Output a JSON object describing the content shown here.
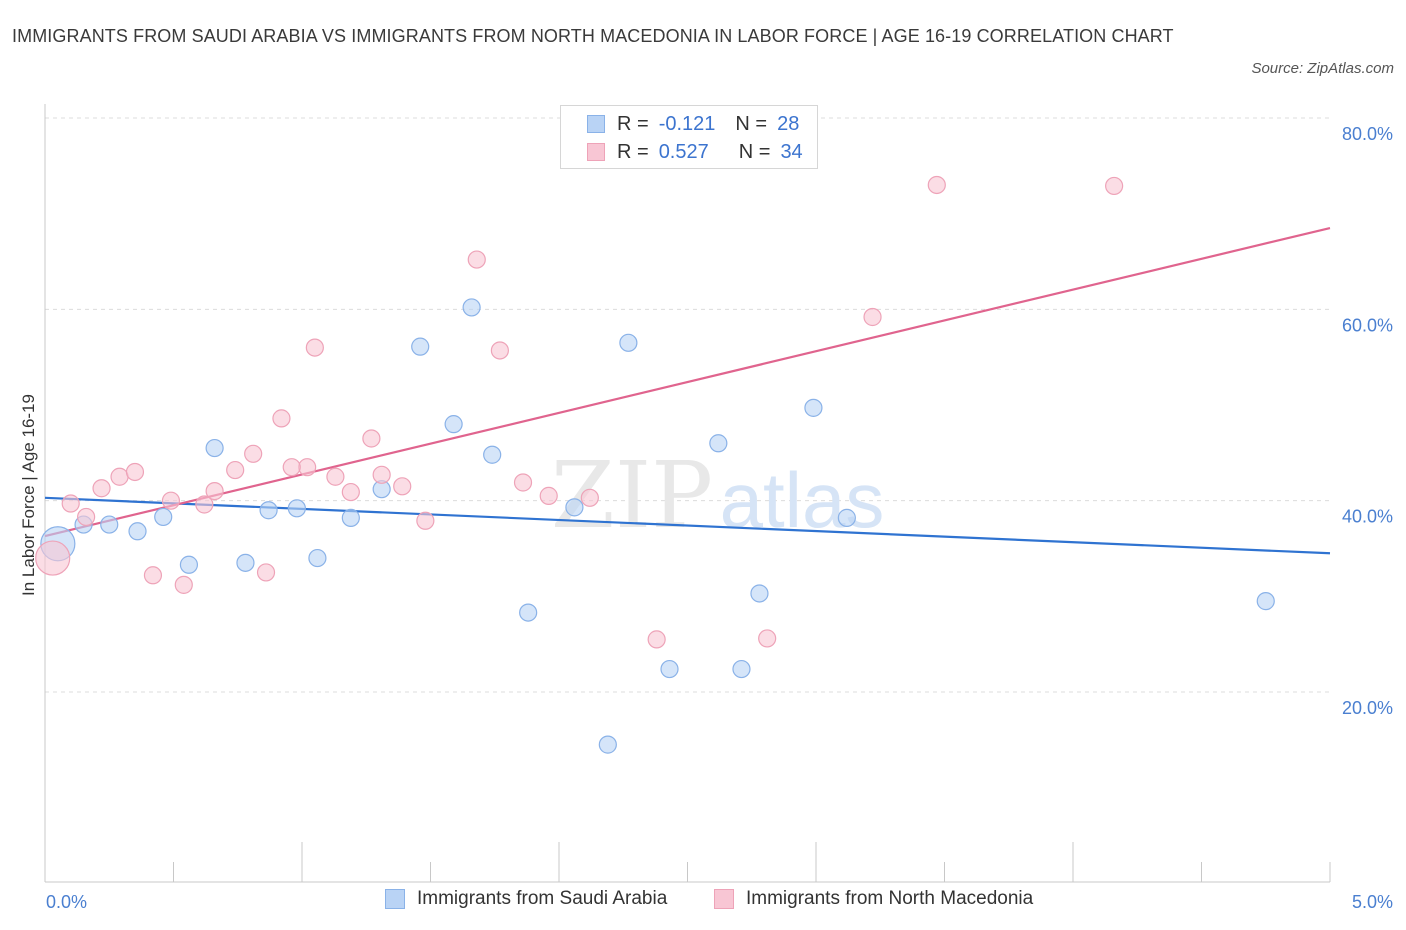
{
  "header": {
    "title": "IMMIGRANTS FROM SAUDI ARABIA VS IMMIGRANTS FROM NORTH MACEDONIA IN LABOR FORCE | AGE 16-19 CORRELATION CHART",
    "source": "Source: ZipAtlas.com"
  },
  "legend": {
    "rows": [
      {
        "r_label": "R =",
        "r_value": "-0.121",
        "n_label": "N =",
        "n_value": "28"
      },
      {
        "r_label": "R =",
        "r_value": "0.527",
        "n_label": "N =",
        "n_value": "34"
      }
    ]
  },
  "bottom_legend": {
    "items": [
      "Immigrants from Saudi Arabia",
      "Immigrants from North Macedonia"
    ]
  },
  "watermark": {
    "zip": "ZIP",
    "atlas": "atlas"
  },
  "colors": {
    "blue_fill": "#b9d3f5",
    "blue_stroke": "#8ab2e8",
    "blue_line": "#2f73d1",
    "pink_fill": "#f8c6d4",
    "pink_stroke": "#eea3b8",
    "pink_line": "#e0648e",
    "tick_text": "#4a7fd0",
    "grid": "#dcdcdc"
  },
  "chart_data": {
    "type": "scatter",
    "title": "IMMIGRANTS FROM SAUDI ARABIA VS IMMIGRANTS FROM NORTH MACEDONIA IN LABOR FORCE | AGE 16-19 CORRELATION CHART",
    "xlabel": "",
    "ylabel": "In Labor Force | Age 16-19",
    "xlim": [
      0,
      5
    ],
    "ylim": [
      0,
      80
    ],
    "x_tick_labels": [
      "0.0%",
      "5.0%"
    ],
    "y_ticks": [
      20,
      40,
      60,
      80
    ],
    "y_tick_labels": [
      "20.0%",
      "40.0%",
      "60.0%",
      "80.0%"
    ],
    "grid": true,
    "legend_position": "top-center",
    "series": [
      {
        "name": "Immigrants from Saudi Arabia",
        "color": "#8ab2e8",
        "points": [
          {
            "x": 0.05,
            "y": 35.5,
            "big": true
          },
          {
            "x": 0.15,
            "y": 37.5
          },
          {
            "x": 0.25,
            "y": 37.5
          },
          {
            "x": 0.36,
            "y": 36.8
          },
          {
            "x": 0.46,
            "y": 38.3
          },
          {
            "x": 0.56,
            "y": 33.3
          },
          {
            "x": 0.66,
            "y": 45.5
          },
          {
            "x": 0.78,
            "y": 33.5
          },
          {
            "x": 0.87,
            "y": 39.0
          },
          {
            "x": 0.98,
            "y": 39.2
          },
          {
            "x": 1.06,
            "y": 34.0
          },
          {
            "x": 1.19,
            "y": 38.2
          },
          {
            "x": 1.31,
            "y": 41.2
          },
          {
            "x": 1.46,
            "y": 56.1
          },
          {
            "x": 1.59,
            "y": 48.0
          },
          {
            "x": 1.66,
            "y": 60.2
          },
          {
            "x": 1.74,
            "y": 44.8
          },
          {
            "x": 1.88,
            "y": 28.3
          },
          {
            "x": 2.06,
            "y": 39.3
          },
          {
            "x": 2.19,
            "y": 14.5
          },
          {
            "x": 2.27,
            "y": 56.5
          },
          {
            "x": 2.43,
            "y": 22.4
          },
          {
            "x": 2.62,
            "y": 46.0
          },
          {
            "x": 2.71,
            "y": 22.4
          },
          {
            "x": 2.78,
            "y": 30.3
          },
          {
            "x": 2.99,
            "y": 49.7
          },
          {
            "x": 3.12,
            "y": 38.2
          },
          {
            "x": 4.75,
            "y": 29.5
          }
        ],
        "trend": {
          "x": [
            0.0,
            5.0
          ],
          "y": [
            40.3,
            34.5
          ]
        }
      },
      {
        "name": "Immigrants from North Macedonia",
        "color": "#eea3b8",
        "points": [
          {
            "x": 0.03,
            "y": 34.0,
            "big": true
          },
          {
            "x": 0.1,
            "y": 39.7
          },
          {
            "x": 0.16,
            "y": 38.3
          },
          {
            "x": 0.22,
            "y": 41.3
          },
          {
            "x": 0.29,
            "y": 42.5
          },
          {
            "x": 0.35,
            "y": 43.0
          },
          {
            "x": 0.42,
            "y": 32.2
          },
          {
            "x": 0.49,
            "y": 40.0
          },
          {
            "x": 0.54,
            "y": 31.2
          },
          {
            "x": 0.62,
            "y": 39.6
          },
          {
            "x": 0.66,
            "y": 41.0
          },
          {
            "x": 0.74,
            "y": 43.2
          },
          {
            "x": 0.81,
            "y": 44.9
          },
          {
            "x": 0.86,
            "y": 32.5
          },
          {
            "x": 0.92,
            "y": 48.6
          },
          {
            "x": 1.02,
            "y": 43.5
          },
          {
            "x": 1.05,
            "y": 56.0
          },
          {
            "x": 1.13,
            "y": 42.5
          },
          {
            "x": 1.19,
            "y": 40.9
          },
          {
            "x": 1.27,
            "y": 46.5
          },
          {
            "x": 1.31,
            "y": 42.7
          },
          {
            "x": 1.39,
            "y": 41.5
          },
          {
            "x": 1.48,
            "y": 37.9
          },
          {
            "x": 1.68,
            "y": 65.2
          },
          {
            "x": 1.77,
            "y": 55.7
          },
          {
            "x": 1.86,
            "y": 41.9
          },
          {
            "x": 1.96,
            "y": 40.5
          },
          {
            "x": 2.12,
            "y": 40.3
          },
          {
            "x": 2.38,
            "y": 25.5
          },
          {
            "x": 2.81,
            "y": 25.6
          },
          {
            "x": 3.22,
            "y": 59.2
          },
          {
            "x": 3.47,
            "y": 73.0
          },
          {
            "x": 4.16,
            "y": 72.9
          },
          {
            "x": 0.96,
            "y": 43.5
          }
        ],
        "trend": {
          "x": [
            0.0,
            5.0
          ],
          "y": [
            36.3,
            68.5
          ]
        }
      }
    ]
  }
}
